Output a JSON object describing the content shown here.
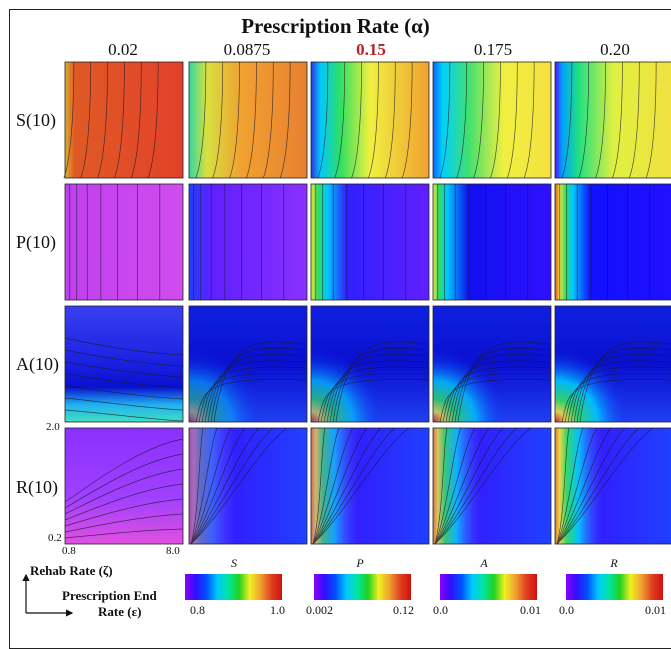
{
  "title": "Prescription Rate (α)",
  "columns": [
    "0.02",
    "0.0875",
    "0.15",
    "0.175",
    "0.20"
  ],
  "highlighted_column": "0.15",
  "rows": [
    "S(10)",
    "P(10)",
    "A(10)",
    "R(10)"
  ],
  "axes": {
    "y_ticks": [
      "2.0",
      "0.2"
    ],
    "x_ticks": [
      "0.8",
      "8.0"
    ],
    "y_label": "Rehab Rate (ζ)",
    "x_label_line1": "Prescription End",
    "x_label_line2": "Rate (ε)"
  },
  "colorbars": [
    {
      "label": "S",
      "min": "0.8",
      "max": "1.0"
    },
    {
      "label": "P",
      "min": "0.002",
      "max": "0.12"
    },
    {
      "label": "A",
      "min": "0.0",
      "max": "0.01"
    },
    {
      "label": "R",
      "min": "0.0",
      "max": "0.01"
    }
  ],
  "colormap": [
    "#8b00ff",
    "#3010ff",
    "#0050ff",
    "#00c8ff",
    "#00e6a0",
    "#20d020",
    "#f0f020",
    "#f0a030",
    "#e04020",
    "#d01010"
  ]
}
